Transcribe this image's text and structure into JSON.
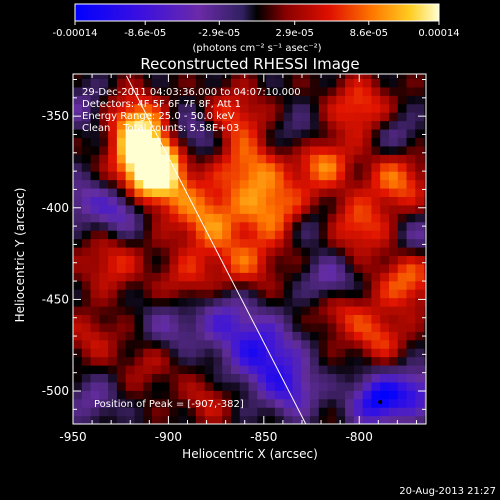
{
  "chart_data": {
    "type": "heatmap",
    "title": "Reconstructed RHESSI Image",
    "xlabel": "Heliocentric X (arcsec)",
    "ylabel": "Heliocentric Y (arcsec)",
    "x_ticks": [
      "-950",
      "-900",
      "-850",
      "-800"
    ],
    "y_ticks": [
      "-350",
      "-400",
      "-450",
      "-500"
    ],
    "xlim": [
      -950,
      -765
    ],
    "ylim": [
      -518,
      -327
    ],
    "colorbar": {
      "ticks": [
        "-0.00014",
        "-8.6e-05",
        "-2.9e-05",
        "2.9e-05",
        "8.6e-05",
        "0.00014"
      ],
      "range": [
        -0.00014,
        0.00014
      ],
      "unit_label": "(photons cm⁻² s⁻¹ asec⁻²)"
    },
    "annotations": {
      "time": "29-Dec-2011 04:03:36.000 to 04:07:10.000",
      "detectors": "Detectors: 4F 5F 6F 7F 8F, Att 1",
      "energy": "Energy Range: 25.0 - 50.0 keV",
      "clean": "Clean    Total counts: 5.58E+03",
      "peak": "Position of Peak = [-907,-382]"
    },
    "peak": {
      "x": -907,
      "y": -382
    },
    "blobs": [
      {
        "x": -907,
        "y": -382,
        "v": 1.0,
        "s": 12
      },
      {
        "x": -912,
        "y": -368,
        "v": 0.85,
        "s": 11
      },
      {
        "x": -918,
        "y": -350,
        "v": 0.55,
        "s": 10
      },
      {
        "x": -880,
        "y": -405,
        "v": 0.6,
        "s": 13
      },
      {
        "x": -858,
        "y": -378,
        "v": 0.55,
        "s": 11
      },
      {
        "x": -865,
        "y": -350,
        "v": 0.45,
        "s": 11
      },
      {
        "x": -845,
        "y": -400,
        "v": 0.6,
        "s": 12
      },
      {
        "x": -820,
        "y": -375,
        "v": 0.6,
        "s": 11
      },
      {
        "x": -800,
        "y": -345,
        "v": 0.5,
        "s": 11
      },
      {
        "x": -780,
        "y": -385,
        "v": 0.55,
        "s": 11
      },
      {
        "x": -800,
        "y": -410,
        "v": 0.5,
        "s": 11
      },
      {
        "x": -775,
        "y": -440,
        "v": 0.55,
        "s": 11
      },
      {
        "x": -790,
        "y": -470,
        "v": 0.45,
        "s": 10
      },
      {
        "x": -810,
        "y": -455,
        "v": 0.4,
        "s": 10
      },
      {
        "x": -860,
        "y": -430,
        "v": 0.45,
        "s": 12
      },
      {
        "x": -890,
        "y": -440,
        "v": 0.35,
        "s": 11
      },
      {
        "x": -930,
        "y": -430,
        "v": 0.4,
        "s": 11
      },
      {
        "x": -940,
        "y": -470,
        "v": 0.3,
        "s": 10
      },
      {
        "x": -910,
        "y": -485,
        "v": 0.25,
        "s": 10
      },
      {
        "x": -880,
        "y": -505,
        "v": 0.3,
        "s": 9
      },
      {
        "x": -925,
        "y": -402,
        "v": -0.55,
        "s": 9
      },
      {
        "x": -945,
        "y": -395,
        "v": -0.4,
        "s": 9
      },
      {
        "x": -945,
        "y": -345,
        "v": -0.3,
        "s": 9
      },
      {
        "x": -888,
        "y": -360,
        "v": -0.45,
        "s": 9
      },
      {
        "x": -870,
        "y": -460,
        "v": -0.5,
        "s": 12
      },
      {
        "x": -850,
        "y": -480,
        "v": -0.75,
        "s": 13
      },
      {
        "x": -835,
        "y": -500,
        "v": -0.55,
        "s": 10
      },
      {
        "x": -815,
        "y": -440,
        "v": -0.5,
        "s": 9
      },
      {
        "x": -790,
        "y": -505,
        "v": -0.9,
        "s": 10
      },
      {
        "x": -770,
        "y": -500,
        "v": -0.6,
        "s": 9
      },
      {
        "x": -900,
        "y": -465,
        "v": -0.35,
        "s": 10
      },
      {
        "x": -940,
        "y": -505,
        "v": -0.35,
        "s": 9
      },
      {
        "x": -830,
        "y": -360,
        "v": -0.3,
        "s": 9
      },
      {
        "x": -780,
        "y": -360,
        "v": -0.3,
        "s": 8
      },
      {
        "x": -825,
        "y": -410,
        "v": -0.25,
        "s": 8
      },
      {
        "x": -770,
        "y": -415,
        "v": -0.3,
        "s": 8
      }
    ],
    "limb_line": [
      [
        -922,
        -328
      ],
      [
        -828,
        -518
      ]
    ]
  },
  "footer": {
    "timestamp": "20-Aug-2013 21:27"
  }
}
